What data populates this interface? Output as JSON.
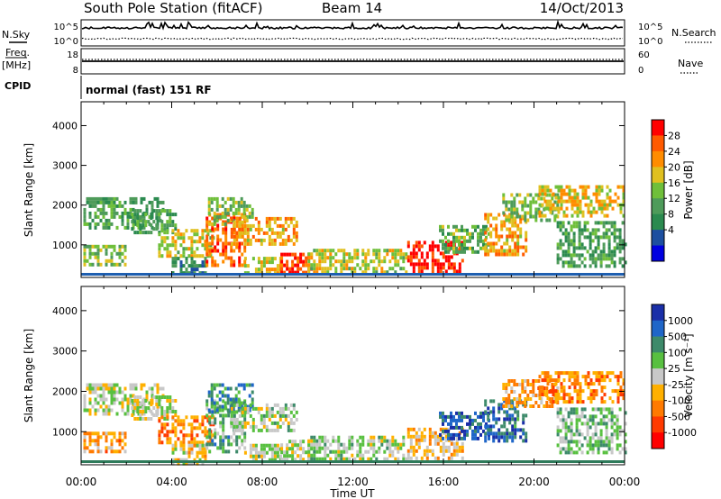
{
  "header": {
    "station": "South Pole Station (fitACF)",
    "beam": "Beam 14",
    "date": "14/Oct/2013"
  },
  "status_panel": {
    "left_labels": {
      "nsky": "N.Sky",
      "freq_line1": "Freq.",
      "freq_line2": "[MHz]",
      "cpid": "CPID"
    },
    "right_labels": {
      "nsearch": "N.Search",
      "nave": "Nave"
    },
    "noise_ticks_left": [
      "10^5",
      "10^0"
    ],
    "noise_ticks_right": [
      "10^5",
      "10^0"
    ],
    "freq_ticks": [
      "18",
      "8"
    ],
    "nave_ticks": [
      "60",
      "0"
    ],
    "cpid_text": "normal (fast) 151 RF"
  },
  "panels": {
    "power": {
      "ylabel": "Slant Range [km]",
      "colorbar_title": "Power [dB]",
      "colorbar_ticks": [
        "28",
        "24",
        "20",
        "16",
        "12",
        "8",
        "4"
      ],
      "colors": [
        "#0000e0",
        "#1d4fa0",
        "#2b8a4f",
        "#4e9b5a",
        "#6fbf3a",
        "#e0c020",
        "#ff8c00",
        "#ff5a00",
        "#ff0000"
      ]
    },
    "velocity": {
      "ylabel": "Slant Range [km]",
      "colorbar_title": "Velocity [m s⁻¹]",
      "colorbar_ticks": [
        "1000",
        "500",
        "100",
        "25",
        "-25",
        "-100",
        "-500",
        "-1000"
      ],
      "colors": [
        "#1a2fa8",
        "#1f66c8",
        "#3d8a6a",
        "#58c040",
        "#c8c8c8",
        "#ffb000",
        "#ff7a00",
        "#ff3a00",
        "#ff0000"
      ]
    }
  },
  "x_axis": {
    "label": "Time UT",
    "ticks": [
      "00:00",
      "04:00",
      "08:00",
      "12:00",
      "16:00",
      "20:00",
      "00:00"
    ]
  },
  "y_axis": {
    "ticks": [
      "4000",
      "3000",
      "2000",
      "1000"
    ]
  },
  "chart_data": {
    "type": "heatmap",
    "title": "South Pole Station (fitACF) Beam 14",
    "xlabel": "Time UT",
    "ylabel": "Slant Range [km]",
    "xlim_hours": [
      0,
      24
    ],
    "ylim_km": [
      180,
      4600
    ],
    "power_scale_db": [
      0,
      32
    ],
    "velocity_scale_ms": [
      -1000,
      1000
    ],
    "echo_regions": [
      {
        "t": [
          0.1,
          3.6
        ],
        "r": [
          1450,
          2200
        ],
        "power": 12,
        "velocity": 25
      },
      {
        "t": [
          0.1,
          2.0
        ],
        "r": [
          500,
          1000
        ],
        "power": 16,
        "velocity": -300
      },
      {
        "t": [
          2.2,
          4.2
        ],
        "r": [
          1300,
          1900
        ],
        "power": 12,
        "velocity": 20
      },
      {
        "t": [
          3.4,
          5.8
        ],
        "r": [
          700,
          1400
        ],
        "power": 18,
        "velocity": -400
      },
      {
        "t": [
          4.0,
          5.5
        ],
        "r": [
          250,
          700
        ],
        "power": 10,
        "velocity": -100
      },
      {
        "t": [
          5.5,
          7.2
        ],
        "r": [
          500,
          1800
        ],
        "power": 26,
        "velocity": 300
      },
      {
        "t": [
          5.6,
          7.6
        ],
        "r": [
          1500,
          2200
        ],
        "power": 16,
        "velocity": 500
      },
      {
        "t": [
          6.6,
          9.5
        ],
        "r": [
          1000,
          1700
        ],
        "power": 22,
        "velocity": 100
      },
      {
        "t": [
          7.2,
          8.8
        ],
        "r": [
          300,
          700
        ],
        "power": 20,
        "velocity": 80
      },
      {
        "t": [
          8.8,
          10.2
        ],
        "r": [
          300,
          800
        ],
        "power": 28,
        "velocity": 50
      },
      {
        "t": [
          10.0,
          14.3
        ],
        "r": [
          300,
          900
        ],
        "power": 18,
        "velocity": 100
      },
      {
        "t": [
          14.4,
          16.9
        ],
        "r": [
          300,
          1100
        ],
        "power": 30,
        "velocity": -200
      },
      {
        "t": [
          15.8,
          18.0
        ],
        "r": [
          800,
          1500
        ],
        "power": 14,
        "velocity": 700
      },
      {
        "t": [
          17.8,
          19.6
        ],
        "r": [
          800,
          1800
        ],
        "power": 22,
        "velocity": 600
      },
      {
        "t": [
          18.6,
          21.0
        ],
        "r": [
          1600,
          2300
        ],
        "power": 16,
        "velocity": -300
      },
      {
        "t": [
          20.2,
          24.0
        ],
        "r": [
          1700,
          2500
        ],
        "power": 20,
        "velocity": -400
      },
      {
        "t": [
          21.0,
          24.0
        ],
        "r": [
          500,
          1600
        ],
        "power": 12,
        "velocity": 200
      }
    ]
  }
}
